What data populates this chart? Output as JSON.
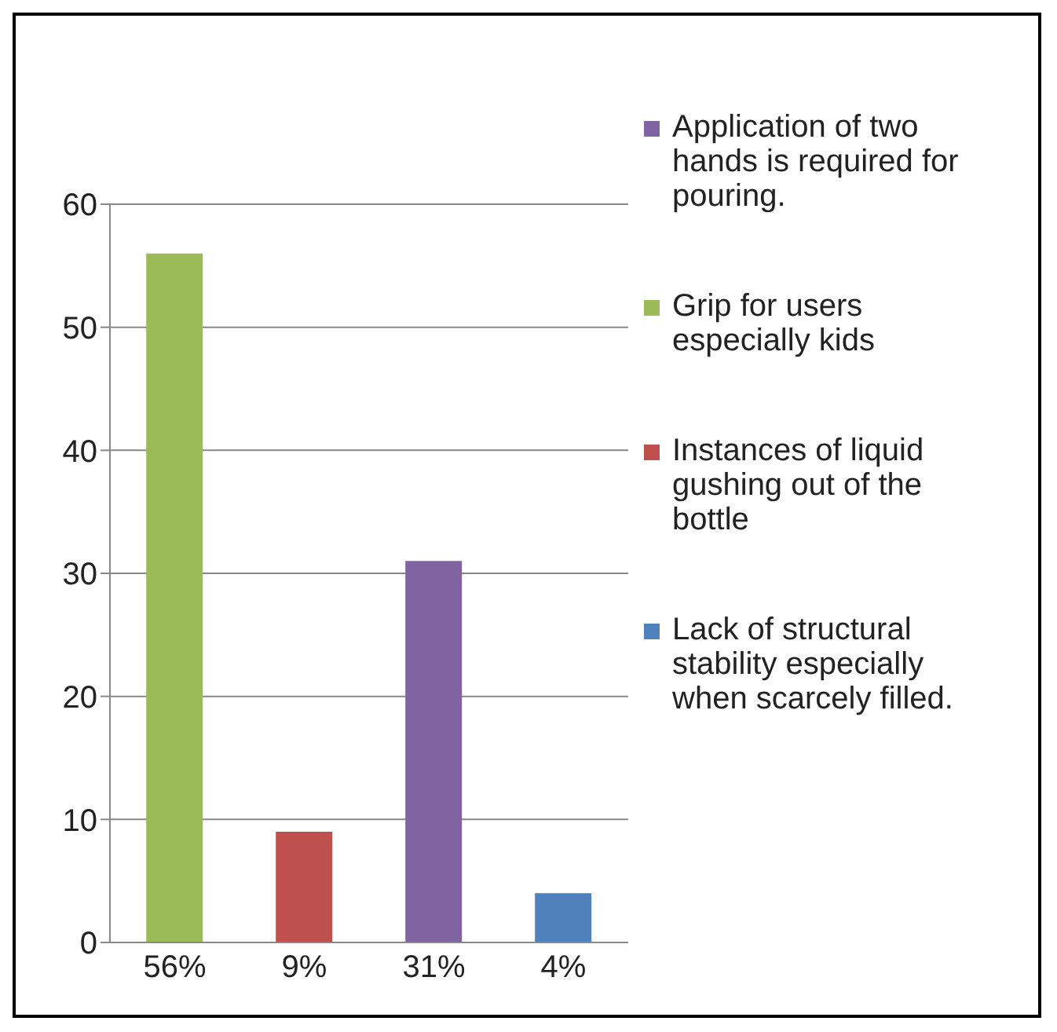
{
  "chart_data": {
    "type": "bar",
    "categories": [
      "56%",
      "9%",
      "31%",
      "4%"
    ],
    "series": [
      {
        "name": "Application of two hands is required for pouring.",
        "color": "#8064a2",
        "values": [
          null,
          null,
          31,
          null
        ]
      },
      {
        "name": "Grip for users especially kids",
        "color": "#9bbb59",
        "values": [
          56,
          null,
          null,
          null
        ]
      },
      {
        "name": "Instances of liquid gushing out of the bottle",
        "color": "#c0504d",
        "values": [
          null,
          9,
          null,
          null
        ]
      },
      {
        "name": "Lack of structural stability especially when scarcely filled.",
        "color": "#4f81bd",
        "values": [
          null,
          null,
          null,
          4
        ]
      }
    ],
    "ylim": [
      0,
      60
    ],
    "yticks": [
      0,
      10,
      20,
      30,
      40,
      50,
      60
    ],
    "grid": "y",
    "legend": "right"
  }
}
